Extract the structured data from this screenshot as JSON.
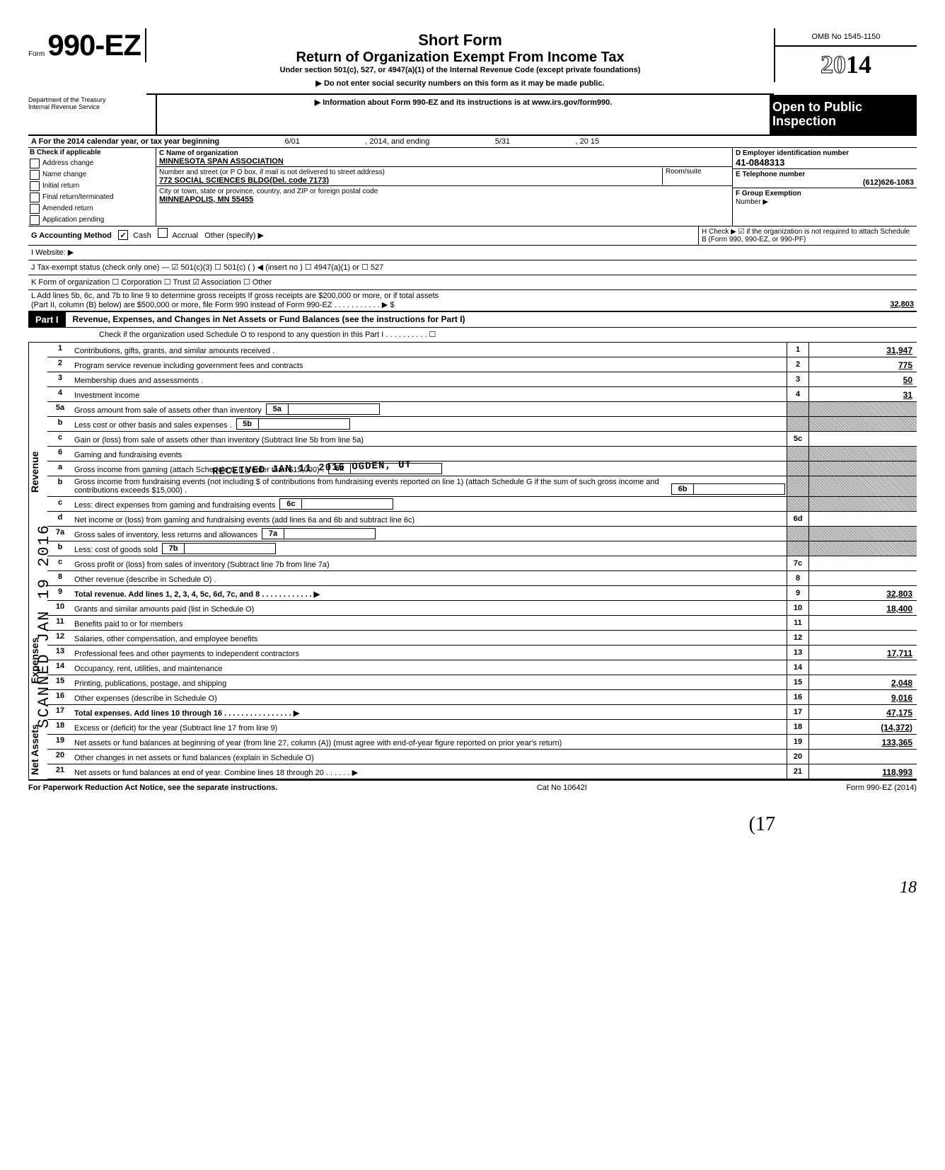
{
  "form": {
    "prefix": "Form",
    "number": "990-EZ",
    "omb": "OMB No 1545-1150",
    "year": "2014",
    "title1": "Short Form",
    "title2": "Return of Organization Exempt From Income Tax",
    "subtitle": "Under section 501(c), 527, or 4947(a)(1) of the Internal Revenue Code (except private foundations)",
    "warn": "▶ Do not enter social security numbers on this form as it may be made public.",
    "info": "▶ Information about Form 990-EZ and its instructions is at www.irs.gov/form990.",
    "open1": "Open to Public",
    "open2": "Inspection",
    "dept1": "Department of the Treasury",
    "dept2": "Internal Revenue Service"
  },
  "A": {
    "text": "A For the 2014 calendar year, or tax year beginning",
    "beg": "6/01",
    "mid": ", 2014, and ending",
    "end": "5/31",
    "yr": ", 20   15"
  },
  "B": {
    "title": "B Check if applicable",
    "opts": [
      "Address change",
      "Name change",
      "Initial return",
      "Final return/terminated",
      "Amended return",
      "Application pending"
    ]
  },
  "C": {
    "nameLbl": "C Name of organization",
    "name": "MINNESOTA SPAN ASSOCIATION",
    "addrLbl": "Number and street (or P O box, if mail is not delivered to street address)",
    "room": "Room/suite",
    "addr": "772 SOCIAL SCIENCES BLDG(Del. code 7173)",
    "cityLbl": "City or town, state or province, country, and ZIP or foreign postal code",
    "city": "MINNEAPOLIS, MN 55455"
  },
  "D": {
    "lbl": "D Employer identification number",
    "val": "41-0848313"
  },
  "E": {
    "lbl": "E Telephone number",
    "val": "(612)626-1083"
  },
  "F": {
    "lbl": "F Group Exemption",
    "lbl2": "Number ▶"
  },
  "G": {
    "lbl": "G Accounting Method",
    "cash": "Cash",
    "accrual": "Accrual",
    "other": "Other (specify) ▶"
  },
  "H": {
    "text": "H Check ▶ ☑ if the organization is not required to attach Schedule B (Form 990, 990-EZ, or 990-PF)"
  },
  "I": "I Website: ▶",
  "J": "J Tax-exempt status (check only one) —  ☑ 501(c)(3)   ☐ 501(c) (      ) ◀ (insert no ) ☐ 4947(a)(1) or   ☐ 527",
  "K": "K Form of organization   ☐ Corporation   ☐ Trust   ☑ Association   ☐ Other",
  "L": {
    "text1": "L Add lines 5b, 6c, and 7b to line 9 to determine gross receipts  If gross receipts are $200,000 or more, or if total assets",
    "text2": "(Part II, column (B) below) are $500,000 or more, file Form 990 instead of Form 990-EZ .  .  .  .  .  .  .  .  .  .  .  ▶   $",
    "amt": "32,803"
  },
  "part1": {
    "tab": "Part I",
    "title": "Revenue, Expenses, and Changes in Net Assets or Fund Balances (see the instructions for Part I)",
    "check": "Check if the organization used Schedule O to respond to any question in this Part I .  .  .  .  .  .  .  .  .  .  ☐"
  },
  "rev": [
    {
      "n": "1",
      "d": "Contributions, gifts, grants, and similar amounts received .",
      "k": "1",
      "v": "31,947"
    },
    {
      "n": "2",
      "d": "Program service revenue including government fees and contracts",
      "k": "2",
      "v": "775"
    },
    {
      "n": "3",
      "d": "Membership dues and assessments .",
      "k": "3",
      "v": "50"
    },
    {
      "n": "4",
      "d": "Investment income",
      "k": "4",
      "v": "31"
    },
    {
      "n": "5a",
      "d": "Gross amount from sale of assets other than inventory",
      "ik": "5a",
      "iv": ""
    },
    {
      "n": "b",
      "d": "Less  cost or other basis and sales expenses .",
      "ik": "5b",
      "iv": ""
    },
    {
      "n": "c",
      "d": "Gain or (loss) from sale of assets other than inventory (Subtract line 5b from line 5a)",
      "k": "5c",
      "v": ""
    },
    {
      "n": "6",
      "d": "Gaming and fundraising events"
    },
    {
      "n": "a",
      "d": "Gross income from gaming (attach Schedule G if greater than $15,000) .",
      "ik": "6a",
      "iv": ""
    },
    {
      "n": "b",
      "d": "Gross income from fundraising events (not including  $                   of contributions from fundraising events reported on line 1) (attach Schedule G if the sum of such gross income and contributions exceeds $15,000) .",
      "ik": "6b",
      "iv": ""
    },
    {
      "n": "c",
      "d": "Less: direct expenses from gaming and fundraising events",
      "ik": "6c",
      "iv": ""
    },
    {
      "n": "d",
      "d": "Net income or (loss) from gaming and fundraising events (add lines 6a and 6b and subtract line 6c)",
      "k": "6d",
      "v": ""
    },
    {
      "n": "7a",
      "d": "Gross sales of inventory, less returns and allowances",
      "ik": "7a",
      "iv": ""
    },
    {
      "n": "b",
      "d": "Less: cost of goods sold",
      "ik": "7b",
      "iv": ""
    },
    {
      "n": "c",
      "d": "Gross profit or (loss) from sales of inventory (Subtract line 7b from line 7a)",
      "k": "7c",
      "v": ""
    },
    {
      "n": "8",
      "d": "Other revenue (describe in Schedule O) .",
      "k": "8",
      "v": ""
    },
    {
      "n": "9",
      "d": "Total revenue. Add lines 1, 2, 3, 4, 5c, 6d, 7c, and 8  .  .  .  .  .  .  .  .  .  .  .  .  ▶",
      "k": "9",
      "v": "32,803",
      "bold": true
    }
  ],
  "exp": [
    {
      "n": "10",
      "d": "Grants and similar amounts paid (list in Schedule O)",
      "k": "10",
      "v": "18,400"
    },
    {
      "n": "11",
      "d": "Benefits paid to or for members",
      "k": "11",
      "v": ""
    },
    {
      "n": "12",
      "d": "Salaries, other compensation, and employee benefits",
      "k": "12",
      "v": ""
    },
    {
      "n": "13",
      "d": "Professional fees and other payments to independent contractors",
      "k": "13",
      "v": "17,711"
    },
    {
      "n": "14",
      "d": "Occupancy, rent, utilities, and maintenance",
      "k": "14",
      "v": ""
    },
    {
      "n": "15",
      "d": "Printing, publications, postage, and shipping",
      "k": "15",
      "v": "2,048"
    },
    {
      "n": "16",
      "d": "Other expenses (describe in Schedule O)",
      "k": "16",
      "v": "9,016"
    },
    {
      "n": "17",
      "d": "Total expenses. Add lines 10 through 16  .  .  .  .  .  .  .  .  .  .  .  .  .  .  .  .  ▶",
      "k": "17",
      "v": "47,175",
      "bold": true
    }
  ],
  "na": [
    {
      "n": "18",
      "d": "Excess or (deficit) for the year (Subtract line 17 from line 9)",
      "k": "18",
      "v": "(14,372)"
    },
    {
      "n": "19",
      "d": "Net assets or fund balances at beginning of year (from line 27, column (A)) (must agree with end-of-year figure reported on prior year's return)",
      "k": "19",
      "v": "133,365"
    },
    {
      "n": "20",
      "d": "Other changes in net assets or fund balances (explain in Schedule O)",
      "k": "20",
      "v": ""
    },
    {
      "n": "21",
      "d": "Net assets or fund balances at end of year. Combine lines 18 through 20  .  .  .  .  .  .  ▶",
      "k": "21",
      "v": "118,993"
    }
  ],
  "footer": {
    "left": "For Paperwork Reduction Act Notice, see the separate instructions.",
    "mid": "Cat No 10642I",
    "right": "Form 990-EZ (2014)"
  },
  "stamps": {
    "side": "SCANNED JAN 19 2016",
    "received": "RECEIVED  JAN 11 2016  OGDEN, UT",
    "hand": "(17",
    "pg": "18"
  },
  "sections": {
    "rev": "Revenue",
    "exp": "Expenses",
    "na": "Net Assets"
  }
}
